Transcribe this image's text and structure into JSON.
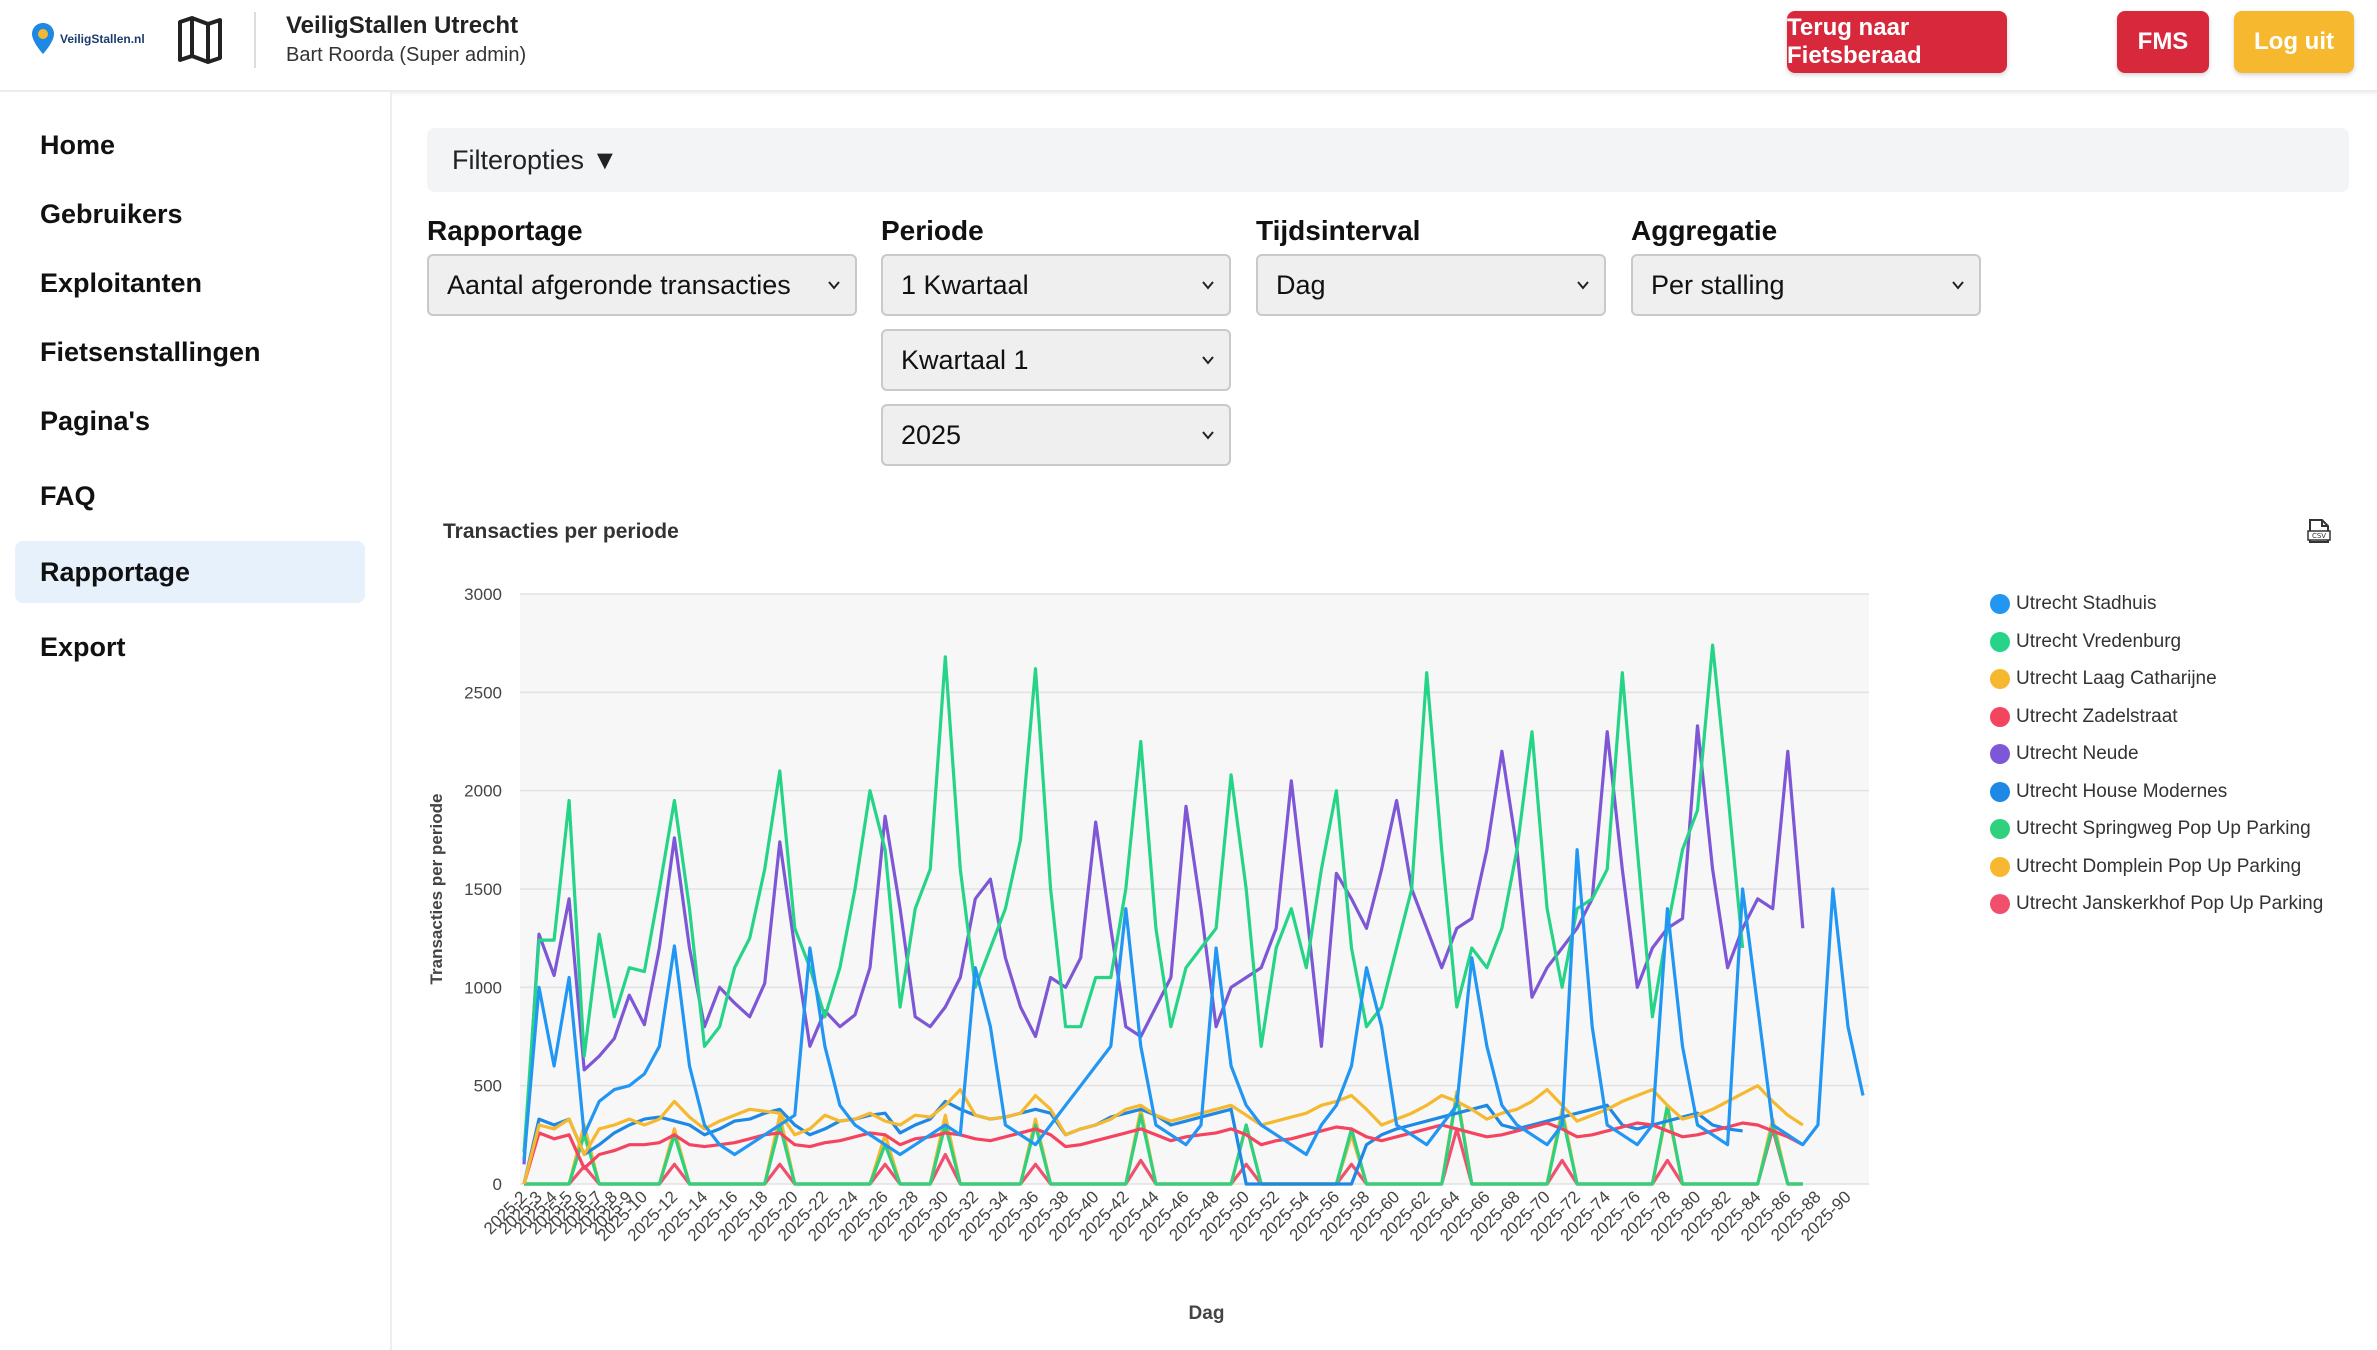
{
  "header": {
    "logo_text": "VeiligStallen.nl",
    "title": "VeiligStallen Utrecht",
    "user": "Bart Roorda (Super admin)",
    "buttons": {
      "fietsberaad": "Terug naar Fietsberaad",
      "fms": "FMS",
      "logout": "Log uit"
    },
    "colors": {
      "fietsberaad": "#d7283c",
      "fms": "#d7283c",
      "logout": "#f5b82e"
    }
  },
  "sidebar": {
    "items": [
      {
        "label": "Home"
      },
      {
        "label": "Gebruikers"
      },
      {
        "label": "Exploitanten"
      },
      {
        "label": "Fietsenstallingen"
      },
      {
        "label": "Pagina's"
      },
      {
        "label": "FAQ"
      },
      {
        "label": "Rapportage",
        "active": true
      },
      {
        "label": "Export"
      }
    ]
  },
  "filters": {
    "toggle_label": "Filteropties ▼",
    "rapportage": {
      "label": "Rapportage",
      "value": "Aantal afgeronde transacties"
    },
    "periode": {
      "label": "Periode",
      "value": "1 Kwartaal",
      "quarter": "Kwartaal 1",
      "year": "2025"
    },
    "tijdsinterval": {
      "label": "Tijdsinterval",
      "value": "Dag"
    },
    "aggregatie": {
      "label": "Aggregatie",
      "value": "Per stalling"
    }
  },
  "chart_title": "Transacties per periode",
  "chart_data": {
    "type": "line",
    "title": "Transacties per periode",
    "xlabel": "Dag",
    "ylabel": "Transacties per periode",
    "ylim": [
      0,
      3000
    ],
    "yticks": [
      0,
      500,
      1000,
      1500,
      2000,
      2500,
      3000
    ],
    "x_start": 2,
    "x_end": 91,
    "x_prefix": "2025-",
    "x_labels_shown": [
      "2025-2",
      "2025-3",
      "2025-4",
      "2025-5",
      "2025-6",
      "2025-7",
      "2025-8",
      "2025-9",
      "2025-10",
      "2025-12",
      "2025-14",
      "2025-16",
      "2025-18",
      "2025-20",
      "2025-22",
      "2025-24",
      "2025-26",
      "2025-28",
      "2025-30",
      "2025-32",
      "2025-34",
      "2025-36",
      "2025-38",
      "2025-40",
      "2025-42",
      "2025-44",
      "2025-46",
      "2025-48",
      "2025-50",
      "2025-52",
      "2025-54",
      "2025-56",
      "2025-58",
      "2025-60",
      "2025-62",
      "2025-64",
      "2025-66",
      "2025-68",
      "2025-70",
      "2025-72",
      "2025-74",
      "2025-76",
      "2025-78",
      "2025-80",
      "2025-82",
      "2025-84",
      "2025-86",
      "2025-88",
      "2025-90"
    ],
    "grid": true,
    "legend_position": "right",
    "series": [
      {
        "name": "Utrecht Stadhuis",
        "color": "#2196f3",
        "values": [
          120,
          1000,
          600,
          1050,
          250,
          420,
          480,
          500,
          560,
          700,
          1210,
          600,
          300,
          200,
          150,
          200,
          250,
          300,
          350,
          1200,
          700,
          400,
          300,
          250,
          200,
          150,
          200,
          250,
          300,
          250,
          1100,
          800,
          300,
          250,
          200,
          300,
          400,
          500,
          600,
          700,
          1400,
          700,
          300,
          250,
          200,
          300,
          1200,
          600,
          400,
          300,
          250,
          200,
          150,
          300,
          400,
          600,
          1100,
          800,
          300,
          250,
          200,
          300,
          400,
          1150,
          700,
          400,
          300,
          250,
          200,
          300,
          1700,
          800,
          300,
          250,
          200,
          300,
          1400,
          700,
          300,
          250,
          200,
          1500,
          900,
          300,
          250,
          200,
          300,
          1500,
          800,
          450
        ]
      },
      {
        "name": "Utrecht Vredenburg",
        "color": "#26d488",
        "values": [
          160,
          1240,
          1240,
          1950,
          650,
          1270,
          850,
          1100,
          1080,
          1500,
          1950,
          1400,
          700,
          800,
          1100,
          1250,
          1600,
          2100,
          1300,
          1100,
          850,
          1100,
          1500,
          2000,
          1700,
          900,
          1400,
          1600,
          2680,
          1600,
          1000,
          1200,
          1400,
          1750,
          2620,
          1500,
          800,
          800,
          1050,
          1050,
          1500,
          2250,
          1300,
          800,
          1100,
          1200,
          1300,
          2080,
          1500,
          700,
          1200,
          1400,
          1100,
          1600,
          2000,
          1200,
          800,
          900,
          1200,
          1500,
          2600,
          1700,
          900,
          1200,
          1100,
          1300,
          1700,
          2300,
          1400,
          1000,
          1400,
          1450,
          1600,
          2600,
          1700,
          850,
          1300,
          1700,
          1900,
          2740,
          2000,
          1200
        ]
      },
      {
        "name": "Utrecht Laag Catharijne",
        "color": "#f5b82e",
        "values": [
          0,
          300,
          280,
          330,
          150,
          280,
          300,
          330,
          300,
          330,
          420,
          340,
          280,
          320,
          350,
          380,
          370,
          360,
          250,
          280,
          350,
          320,
          330,
          360,
          320,
          300,
          350,
          340,
          400,
          480,
          350,
          330,
          340,
          360,
          450,
          380,
          250,
          280,
          300,
          330,
          380,
          400,
          350,
          320,
          340,
          360,
          380,
          400,
          350,
          300,
          320,
          340,
          360,
          400,
          420,
          450,
          380,
          300,
          330,
          360,
          400,
          450,
          420,
          380,
          330,
          360,
          380,
          420,
          480,
          400,
          320,
          350,
          380,
          420,
          450,
          480,
          400,
          330,
          350,
          380,
          420,
          460,
          500,
          420,
          350,
          300
        ]
      },
      {
        "name": "Utrecht Zadelstraat",
        "color": "#f4445f",
        "values": [
          0,
          260,
          230,
          250,
          80,
          150,
          170,
          200,
          200,
          210,
          250,
          200,
          190,
          200,
          210,
          230,
          250,
          260,
          200,
          190,
          210,
          220,
          240,
          260,
          250,
          200,
          230,
          240,
          260,
          250,
          230,
          220,
          240,
          260,
          280,
          250,
          190,
          200,
          220,
          240,
          260,
          280,
          250,
          220,
          240,
          250,
          260,
          280,
          250,
          200,
          220,
          230,
          250,
          270,
          290,
          280,
          240,
          220,
          240,
          260,
          280,
          300,
          280,
          260,
          240,
          250,
          270,
          290,
          310,
          280,
          240,
          250,
          270,
          290,
          310,
          300,
          270,
          240,
          250,
          270,
          290,
          310,
          300,
          270,
          240,
          200
        ]
      },
      {
        "name": "Utrecht Neude",
        "color": "#7e57d6",
        "values": [
          100,
          1270,
          1060,
          1450,
          580,
          650,
          740,
          960,
          810,
          1200,
          1760,
          1200,
          800,
          1000,
          920,
          850,
          1020,
          1740,
          1200,
          700,
          880,
          800,
          860,
          1100,
          1870,
          1400,
          850,
          800,
          900,
          1050,
          1450,
          1550,
          1150,
          900,
          750,
          1050,
          1000,
          1150,
          1840,
          1300,
          800,
          750,
          900,
          1050,
          1920,
          1400,
          800,
          1000,
          1050,
          1100,
          1300,
          2050,
          1400,
          700,
          1580,
          1450,
          1300,
          1600,
          1950,
          1500,
          1300,
          1100,
          1300,
          1350,
          1700,
          2200,
          1700,
          950,
          1100,
          1200,
          1300,
          1450,
          2300,
          1600,
          1000,
          1200,
          1300,
          1350,
          2330,
          1600,
          1100,
          1300,
          1450,
          1400,
          2200,
          1300
        ]
      },
      {
        "name": "Utrecht House Modernes",
        "color": "#1e88e5",
        "values": [
          0,
          330,
          300,
          330,
          150,
          200,
          260,
          300,
          330,
          340,
          320,
          300,
          250,
          280,
          320,
          330,
          360,
          380,
          300,
          250,
          280,
          320,
          330,
          350,
          360,
          260,
          300,
          330,
          420,
          380,
          350,
          330,
          340,
          360,
          380,
          360,
          250,
          280,
          300,
          340,
          360,
          380,
          350,
          300,
          320,
          340,
          360,
          380,
          0,
          0,
          0,
          0,
          0,
          0,
          0,
          0,
          200,
          250,
          280,
          300,
          320,
          340,
          360,
          380,
          400,
          300,
          280,
          300,
          320,
          340,
          360,
          380,
          400,
          300,
          280,
          300,
          320,
          340,
          360,
          300,
          280,
          270
        ]
      },
      {
        "name": "Utrecht Springweg Pop Up Parking",
        "color": "#2fd07e",
        "values": [
          0,
          0,
          0,
          0,
          250,
          0,
          0,
          0,
          0,
          0,
          250,
          0,
          0,
          0,
          0,
          0,
          0,
          300,
          0,
          0,
          0,
          0,
          0,
          0,
          200,
          0,
          0,
          0,
          300,
          0,
          0,
          0,
          0,
          0,
          300,
          0,
          0,
          0,
          0,
          0,
          0,
          350,
          0,
          0,
          0,
          0,
          0,
          0,
          300,
          0,
          0,
          0,
          0,
          0,
          0,
          280,
          0,
          0,
          0,
          0,
          0,
          0,
          450,
          0,
          0,
          0,
          0,
          0,
          0,
          350,
          0,
          0,
          0,
          0,
          0,
          0,
          400,
          0,
          0,
          0,
          0,
          0,
          0,
          300,
          0,
          0
        ]
      },
      {
        "name": "Utrecht Domplein Pop Up Parking",
        "color": "#f7b731",
        "values": [
          0,
          0,
          0,
          0,
          300,
          0,
          0,
          0,
          0,
          0,
          280,
          0,
          0,
          0,
          0,
          0,
          0,
          350,
          0,
          0,
          0,
          0,
          0,
          0,
          250,
          0,
          0,
          0,
          350,
          0,
          0,
          0,
          0,
          0,
          330,
          0,
          0,
          0,
          0,
          0,
          0,
          380,
          0,
          0,
          0,
          0,
          0,
          0,
          300,
          0,
          0,
          0,
          0,
          0,
          0,
          250,
          0,
          0,
          0,
          0,
          0,
          0,
          470,
          0,
          0,
          0,
          0,
          0,
          0,
          380,
          0,
          0,
          0,
          0,
          0,
          0,
          380,
          0,
          0,
          0,
          0,
          0,
          0,
          330,
          0,
          0
        ]
      },
      {
        "name": "Utrecht Janskerkhof Pop Up Parking",
        "color": "#f0506e",
        "values": [
          0,
          0,
          0,
          0,
          90,
          0,
          0,
          0,
          0,
          0,
          100,
          0,
          0,
          0,
          0,
          0,
          0,
          100,
          0,
          0,
          0,
          0,
          0,
          0,
          100,
          0,
          0,
          0,
          150,
          0,
          0,
          0,
          0,
          0,
          100,
          0,
          0,
          0,
          0,
          0,
          0,
          120,
          0,
          0,
          0,
          0,
          0,
          0,
          100,
          0,
          0,
          0,
          0,
          0,
          0,
          100,
          0,
          0,
          0,
          0,
          0,
          0,
          280,
          0,
          0,
          0,
          0,
          0,
          0,
          120,
          0,
          0,
          0,
          0,
          0,
          0,
          120,
          0,
          0,
          0,
          0,
          0,
          0,
          280,
          0,
          0
        ]
      }
    ]
  }
}
